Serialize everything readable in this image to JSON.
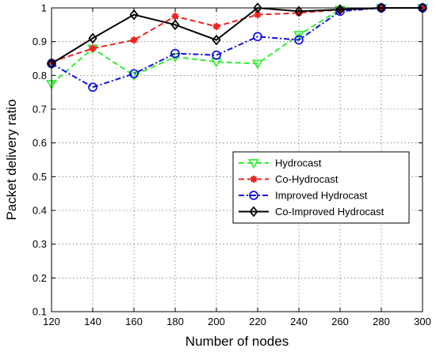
{
  "chart_data": {
    "type": "line",
    "title": "",
    "xlabel": "Number of nodes",
    "ylabel": "Packet delivery ratio",
    "xlim": [
      120,
      300
    ],
    "ylim": [
      0.1,
      1
    ],
    "x_ticks": [
      120,
      140,
      160,
      180,
      200,
      220,
      240,
      260,
      280,
      300
    ],
    "y_ticks": [
      0.1,
      0.2,
      0.3,
      0.4,
      0.5,
      0.6,
      0.7,
      0.8,
      0.9,
      1
    ],
    "grid": true,
    "legend_position": "center-right",
    "x": [
      120,
      140,
      160,
      180,
      200,
      220,
      240,
      260,
      280,
      300
    ],
    "series": [
      {
        "name": "Hydrocast",
        "values": [
          0.775,
          0.88,
          0.8,
          0.855,
          0.84,
          0.835,
          0.92,
          0.995,
          1.0,
          1.0
        ],
        "color": "#33ee33",
        "line_style": "dashed",
        "marker": "triangle-down"
      },
      {
        "name": "Co-Hydrocast",
        "values": [
          0.84,
          0.88,
          0.905,
          0.975,
          0.945,
          0.98,
          0.985,
          0.995,
          1.0,
          1.0
        ],
        "color": "#ee2222",
        "line_style": "dashed",
        "marker": "asterisk"
      },
      {
        "name": "Improved Hydrocast",
        "values": [
          0.835,
          0.765,
          0.805,
          0.865,
          0.86,
          0.915,
          0.905,
          0.99,
          1.0,
          1.0
        ],
        "color": "#1111dd",
        "line_style": "dash-dot",
        "marker": "circle"
      },
      {
        "name": "Co-Improved Hydrocast",
        "values": [
          0.835,
          0.91,
          0.98,
          0.95,
          0.905,
          1.0,
          0.99,
          0.995,
          1.0,
          1.0
        ],
        "color": "#000000",
        "line_style": "solid",
        "marker": "diamond"
      }
    ]
  }
}
